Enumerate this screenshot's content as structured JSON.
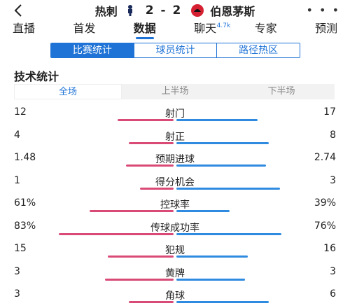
{
  "header": {
    "back_icon": "chevron-left-icon",
    "home_team": "热刺",
    "away_team": "伯恩茅斯",
    "home_score": "2",
    "separator": "-",
    "away_score": "2",
    "more_icon": "more-dots-icon",
    "more_label": "• • •"
  },
  "nav": {
    "items": [
      {
        "label": "直播"
      },
      {
        "label": "首发"
      },
      {
        "label": "数据"
      },
      {
        "label": "聊天",
        "badge": "4.7k"
      },
      {
        "label": "专家"
      },
      {
        "label": "预测"
      }
    ],
    "active_index": 2
  },
  "segment": {
    "items": [
      "比赛统计",
      "球员统计",
      "路径热区"
    ],
    "active_index": 0
  },
  "section_title": "技术统计",
  "periods": {
    "items": [
      "全场",
      "上半场",
      "下半场"
    ],
    "active_index": 0
  },
  "colors": {
    "home": "#d94a77",
    "away": "#2f8bdf",
    "accent": "#1f73d6"
  },
  "stats": [
    {
      "label": "射门",
      "home": "12",
      "away": "17",
      "home_fraction": 0.41,
      "away_fraction": 0.59
    },
    {
      "label": "射正",
      "home": "4",
      "away": "8",
      "home_fraction": 0.33,
      "away_fraction": 0.67
    },
    {
      "label": "预期进球",
      "home": "1.48",
      "away": "2.74",
      "home_fraction": 0.35,
      "away_fraction": 0.65
    },
    {
      "label": "得分机会",
      "home": "1",
      "away": "3",
      "home_fraction": 0.25,
      "away_fraction": 0.75
    },
    {
      "label": "控球率",
      "home": "61%",
      "away": "39%",
      "home_fraction": 0.61,
      "away_fraction": 0.39
    },
    {
      "label": "传球成功率",
      "home": "83%",
      "away": "76%",
      "home_fraction": 0.83,
      "away_fraction": 0.76
    },
    {
      "label": "犯规",
      "home": "15",
      "away": "16",
      "home_fraction": 0.48,
      "away_fraction": 0.52
    },
    {
      "label": "黄牌",
      "home": "3",
      "away": "3",
      "home_fraction": 0.5,
      "away_fraction": 0.5
    },
    {
      "label": "角球",
      "home": "3",
      "away": "6",
      "home_fraction": 0.33,
      "away_fraction": 0.67
    }
  ]
}
